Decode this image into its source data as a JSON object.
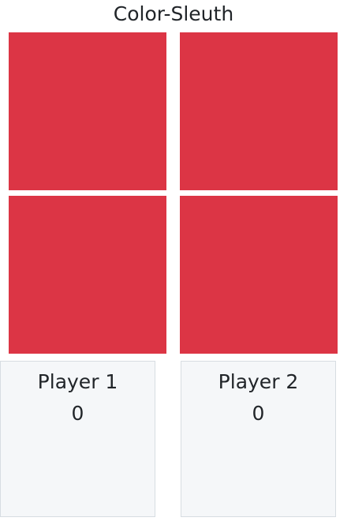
{
  "game": {
    "title": "Color-Sleuth"
  },
  "colors": {
    "tile": "#dc3545",
    "panel_bg": "#f5f7f9",
    "panel_border": "#d7dde2",
    "text": "#212529"
  },
  "tiles": [
    {
      "id": "tile-1"
    },
    {
      "id": "tile-2"
    },
    {
      "id": "tile-3"
    },
    {
      "id": "tile-4"
    }
  ],
  "players": [
    {
      "name": "Player 1",
      "score": "0"
    },
    {
      "name": "Player 2",
      "score": "0"
    }
  ]
}
